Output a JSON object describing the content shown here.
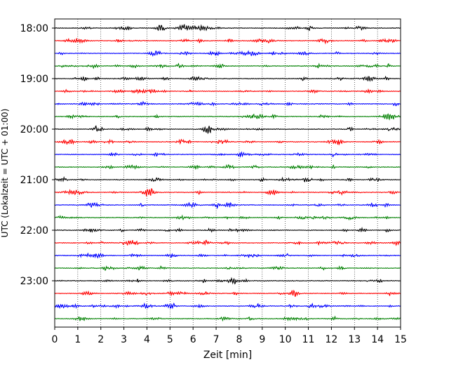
{
  "chart_data": {
    "type": "line",
    "title": "",
    "xlabel": "Zeit  [min]",
    "ylabel": "UTC (Lokalzeit = UTC + 01:00)",
    "xlim": [
      0,
      15
    ],
    "x_ticks": [
      0,
      1,
      2,
      3,
      4,
      5,
      6,
      7,
      8,
      9,
      10,
      11,
      12,
      13,
      14,
      15
    ],
    "y_tick_labels": [
      "18:00",
      "19:00",
      "20:00",
      "21:00",
      "22:00",
      "23:00"
    ],
    "trace_count": 24,
    "trace_interval_minutes": 15,
    "trace_colors": [
      "#000000",
      "#ff0000",
      "#0000ff",
      "#008000"
    ],
    "grid_x": "dotted",
    "grid_y": "none",
    "legend": "none"
  }
}
